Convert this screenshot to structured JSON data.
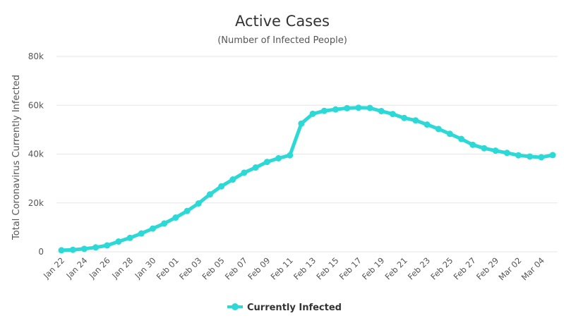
{
  "chart_data": {
    "type": "line",
    "title": "Active Cases",
    "subtitle": "(Number of Infected People)",
    "ylabel": "Total Coronavirus Currently Infected",
    "xlabel": "",
    "ylim": [
      0,
      80000
    ],
    "yticks": [
      0,
      20000,
      40000,
      60000,
      80000
    ],
    "ytick_labels": [
      "0",
      "20k",
      "40k",
      "60k",
      "80k"
    ],
    "grid": true,
    "legend_position": "bottom-center",
    "categories": [
      "Jan 22",
      "Jan 23",
      "Jan 24",
      "Jan 25",
      "Jan 26",
      "Jan 27",
      "Jan 28",
      "Jan 29",
      "Jan 30",
      "Jan 31",
      "Feb 01",
      "Feb 02",
      "Feb 03",
      "Feb 04",
      "Feb 05",
      "Feb 06",
      "Feb 07",
      "Feb 08",
      "Feb 09",
      "Feb 10",
      "Feb 11",
      "Feb 12",
      "Feb 13",
      "Feb 14",
      "Feb 15",
      "Feb 16",
      "Feb 17",
      "Feb 18",
      "Feb 19",
      "Feb 20",
      "Feb 21",
      "Feb 22",
      "Feb 23",
      "Feb 24",
      "Feb 25",
      "Feb 26",
      "Feb 27",
      "Feb 28",
      "Feb 29",
      "Mar 01",
      "Mar 02",
      "Mar 03",
      "Mar 04",
      "Mar 05"
    ],
    "tick_labels_shown": [
      "Jan 22",
      "Jan 24",
      "Jan 26",
      "Jan 28",
      "Jan 30",
      "Feb 01",
      "Feb 03",
      "Feb 05",
      "Feb 07",
      "Feb 09",
      "Feb 11",
      "Feb 13",
      "Feb 15",
      "Feb 17",
      "Feb 19",
      "Feb 21",
      "Feb 23",
      "Feb 25",
      "Feb 27",
      "Feb 29",
      "Mar 02",
      "Mar 04"
    ],
    "series": [
      {
        "name": "Currently Infected",
        "color": "#2dd9d6",
        "values": [
          600,
          800,
          1200,
          1800,
          2600,
          4200,
          5700,
          7500,
          9500,
          11600,
          14000,
          16700,
          19800,
          23500,
          26800,
          29600,
          32400,
          34500,
          36800,
          38300,
          39500,
          52500,
          56500,
          57700,
          58300,
          58800,
          59000,
          58900,
          57600,
          56400,
          54800,
          53800,
          52100,
          50300,
          48300,
          46200,
          43800,
          42400,
          41400,
          40500,
          39500,
          39000,
          38700,
          39600
        ]
      }
    ]
  }
}
